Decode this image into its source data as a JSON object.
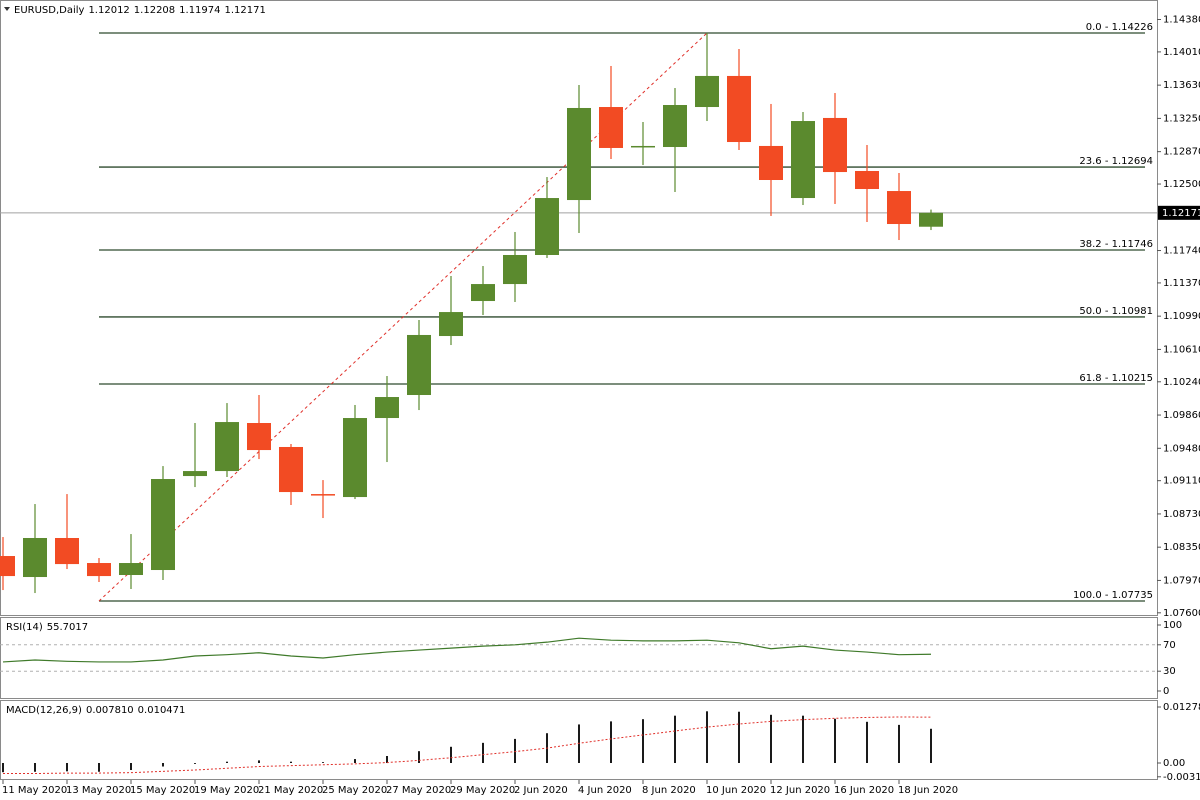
{
  "chart_data": [
    {
      "type": "candlestick",
      "symbol": "EURUSD,Daily",
      "categories": [
        "11 May 2020",
        null,
        "13 May 2020",
        null,
        "15 May 2020",
        null,
        "19 May 2020",
        null,
        "21 May 2020",
        null,
        "25 May 2020",
        null,
        "27 May 2020",
        null,
        "29 May 2020",
        null,
        "2 Jun 2020",
        null,
        "4 Jun 2020",
        null,
        "8 Jun 2020",
        null,
        "10 Jun 2020",
        null,
        "12 Jun 2020",
        null,
        "16 Jun 2020",
        null,
        "18 Jun 2020",
        null
      ],
      "open": [
        1.08249,
        1.08009,
        1.08455,
        1.08169,
        1.08032,
        1.08089,
        1.09163,
        1.0922,
        1.09769,
        1.09495,
        1.08957,
        1.08923,
        1.09826,
        1.10089,
        1.10763,
        1.11163,
        1.11357,
        1.11689,
        1.12317,
        1.1338,
        1.12923,
        1.12923,
        1.1338,
        1.13735,
        1.12935,
        1.1234,
        1.13255,
        1.12649,
        1.1242,
        1.12012
      ],
      "high": [
        1.08466,
        1.08843,
        1.08957,
        1.08226,
        1.085,
        1.09277,
        1.09769,
        1.09997,
        1.10089,
        1.09529,
        1.09117,
        1.09975,
        1.10306,
        1.10946,
        1.11449,
        1.11563,
        1.11952,
        1.1258,
        1.13632,
        1.13849,
        1.13209,
        1.13597,
        1.14226,
        1.14043,
        1.13415,
        1.13323,
        1.1354,
        1.12946,
        1.12626,
        1.12208
      ],
      "low": [
        1.0786,
        1.07826,
        1.081,
        1.07952,
        1.07872,
        1.07975,
        1.09037,
        1.09152,
        1.09357,
        1.08832,
        1.08683,
        1.089,
        1.09323,
        1.09917,
        1.1066,
        1.11003,
        1.11152,
        1.11655,
        1.1194,
        1.12786,
        1.12717,
        1.12409,
        1.1322,
        1.12889,
        1.12135,
        1.1226,
        1.12272,
        1.12066,
        1.1186,
        1.11974
      ],
      "close": [
        1.0802,
        1.08455,
        1.08157,
        1.0802,
        1.08169,
        1.09129,
        1.0922,
        1.0978,
        1.0946,
        1.0898,
        1.08946,
        1.09826,
        1.10066,
        1.10775,
        1.11037,
        1.11357,
        1.11689,
        1.1234,
        1.13369,
        1.12912,
        1.12935,
        1.13403,
        1.13735,
        1.1298,
        1.12546,
        1.1322,
        1.12637,
        1.12443,
        1.12043,
        1.12171
      ],
      "up_color": "#5b8a2e",
      "down_color": "#f24b23",
      "ylim": [
        1.07575,
        1.14603
      ],
      "yticks": [
        {
          "value": 1.1438,
          "label": "1.14380"
        },
        {
          "value": 1.1401,
          "label": "1.14010"
        },
        {
          "value": 1.1363,
          "label": "1.13630"
        },
        {
          "value": 1.1325,
          "label": "1.13250"
        },
        {
          "value": 1.1287,
          "label": "1.12870"
        },
        {
          "value": 1.125,
          "label": "1.12500"
        },
        {
          "value": 1.1174,
          "label": "1.11740"
        },
        {
          "value": 1.1137,
          "label": "1.11370"
        },
        {
          "value": 1.1099,
          "label": "1.10990"
        },
        {
          "value": 1.1061,
          "label": "1.10610"
        },
        {
          "value": 1.1024,
          "label": "1.10240"
        },
        {
          "value": 1.0986,
          "label": "1.09860"
        },
        {
          "value": 1.0948,
          "label": "1.09480"
        },
        {
          "value": 1.0911,
          "label": "1.09110"
        },
        {
          "value": 1.0873,
          "label": "1.08730"
        },
        {
          "value": 1.0835,
          "label": "1.08350"
        },
        {
          "value": 1.0797,
          "label": "1.07970"
        },
        {
          "value": 1.076,
          "label": "1.07600"
        }
      ],
      "fib_levels": [
        {
          "value": 1.14226,
          "label": "0.0 - 1.14226"
        },
        {
          "value": 1.12694,
          "label": "23.6 - 1.12694"
        },
        {
          "value": 1.11746,
          "label": "38.2 - 1.11746"
        },
        {
          "value": 1.10981,
          "label": "50.0 - 1.10981"
        },
        {
          "value": 1.10215,
          "label": "61.8 - 1.10215"
        },
        {
          "value": 1.07735,
          "label": "100.0 - 1.07735"
        }
      ],
      "fib_color": "#2f4a2f",
      "trend_color": "#e0302a"
    },
    {
      "type": "line",
      "title": "RSI(14)",
      "values": [
        44,
        47,
        45,
        44,
        44,
        47,
        53,
        55,
        58,
        53,
        50,
        55,
        59,
        62,
        65,
        68,
        70,
        74,
        80,
        77,
        76,
        76,
        77,
        73,
        64,
        68,
        62,
        59,
        55,
        55.7017
      ],
      "color": "#3f7a2a",
      "ylim": [
        -10.6,
        110.6
      ],
      "yticks": [
        100,
        70,
        30,
        0
      ],
      "levels": [
        70,
        30
      ]
    },
    {
      "type": "bar",
      "title": "MACD(12,26,9)",
      "series": [
        {
          "draw": "bar",
          "color": "#1a1a1a",
          "values": [
            -0.0021,
            -0.002,
            -0.0019,
            -0.002,
            -0.0016,
            -0.0008,
            -0.0002,
            0.0003,
            0.0006,
            0.0003,
            0.0002,
            0.0009,
            0.0016,
            0.0027,
            0.0037,
            0.0046,
            0.0055,
            0.0068,
            0.0088,
            0.0095,
            0.01,
            0.0108,
            0.0118,
            0.0117,
            0.011,
            0.0108,
            0.0101,
            0.0094,
            0.0087,
            0.00781
          ],
          "value_labels": [
            null,
            null,
            null,
            null,
            null,
            null,
            null,
            null,
            null,
            null,
            null,
            null,
            null,
            null,
            null,
            null,
            null,
            null,
            null,
            null,
            null,
            null,
            null,
            null,
            null,
            null,
            null,
            null,
            null,
            "0.007810"
          ]
        },
        {
          "draw": "line",
          "color": "#e0302a",
          "values": [
            -0.0024,
            -0.0024,
            -0.0023,
            -0.0023,
            -0.0022,
            -0.0019,
            -0.0016,
            -0.0012,
            -0.0008,
            -0.0006,
            -0.0004,
            -0.0002,
            0.0001,
            0.0006,
            0.0012,
            0.0019,
            0.0026,
            0.0034,
            0.0045,
            0.0055,
            0.0064,
            0.0073,
            0.0082,
            0.0089,
            0.0095,
            0.0099,
            0.0102,
            0.0104,
            0.0105,
            0.010471
          ]
        }
      ],
      "ylim": [
        -0.00365,
        0.01415
      ],
      "yticks": [
        0.01278,
        {
          "value": 0,
          "label": "0.00"
        },
        -0.003145
      ]
    }
  ]
}
